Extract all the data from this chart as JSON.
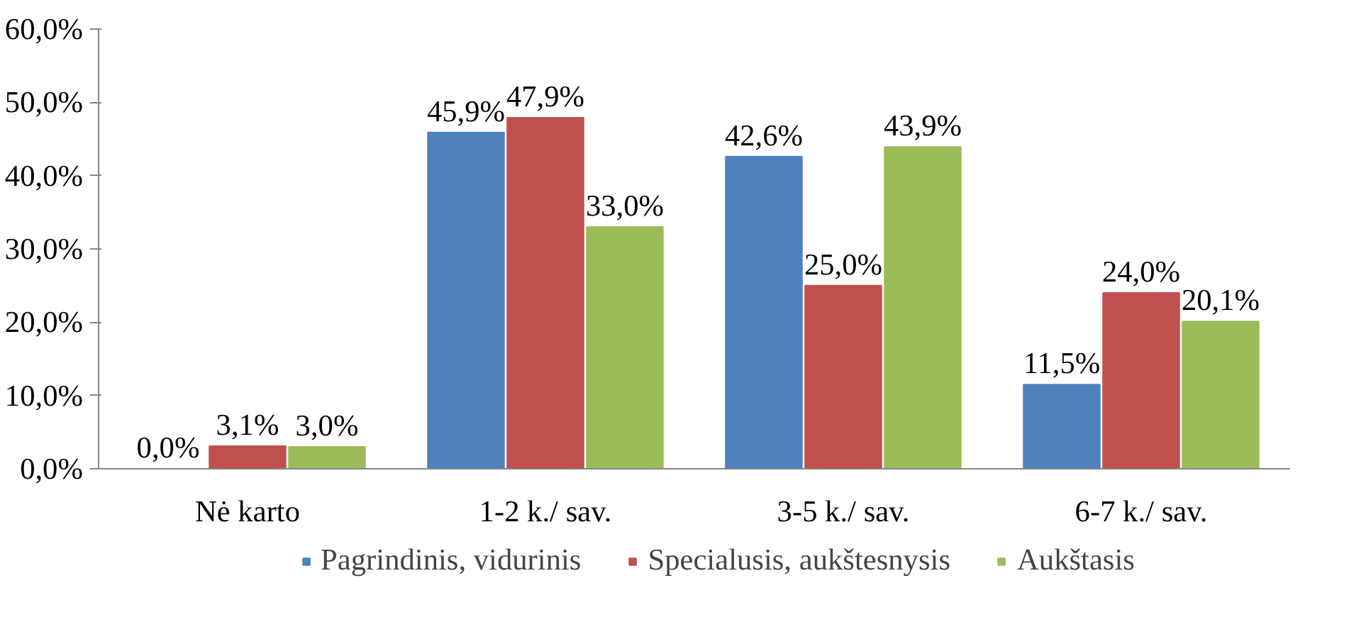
{
  "chart_data": {
    "type": "bar",
    "categories": [
      "Nė karto",
      "1-2 k./ sav.",
      "3-5 k./ sav.",
      "6-7 k./ sav."
    ],
    "series": [
      {
        "name": "Pagrindinis, vidurinis",
        "color": "#4f81bd",
        "values": [
          0.0,
          45.9,
          42.6,
          11.5
        ],
        "value_labels": [
          "0,0%",
          "45,9%",
          "42,6%",
          "11,5%"
        ]
      },
      {
        "name": "Specialusis, aukštesnysis",
        "color": "#c0504d",
        "values": [
          3.1,
          47.9,
          25.0,
          24.0
        ],
        "value_labels": [
          "3,1%",
          "47,9%",
          "25,0%",
          "24,0%"
        ]
      },
      {
        "name": "Aukštasis",
        "color": "#9bbb59",
        "values": [
          3.0,
          33.0,
          43.9,
          20.1
        ],
        "value_labels": [
          "3,0%",
          "33,0%",
          "43,9%",
          "20,1%"
        ]
      }
    ],
    "ylim": [
      0,
      60
    ],
    "yticks": [
      {
        "value": 0,
        "label": "0,0%"
      },
      {
        "value": 10,
        "label": "10,0%"
      },
      {
        "value": 20,
        "label": "20,0%"
      },
      {
        "value": 30,
        "label": "30,0%"
      },
      {
        "value": 40,
        "label": "40,0%"
      },
      {
        "value": 50,
        "label": "50,0%"
      },
      {
        "value": 60,
        "label": "60,0%"
      }
    ],
    "grid": false,
    "legend": "bottom"
  }
}
